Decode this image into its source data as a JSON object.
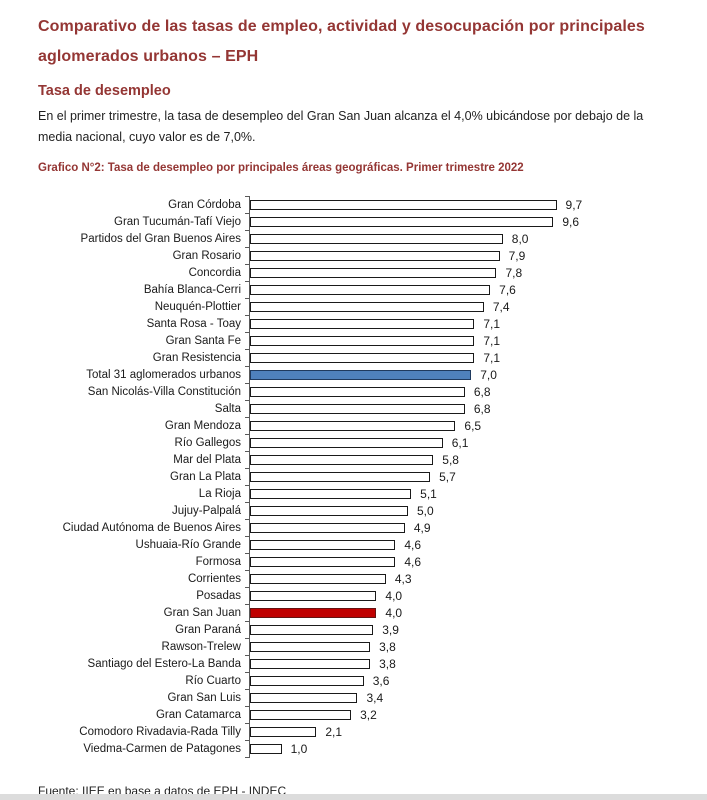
{
  "page": {
    "title": "Comparativo de las tasas de empleo, actividad y desocupación por principales aglomerados urbanos – EPH",
    "section_heading": "Tasa de desempleo",
    "intro_paragraph": "En el primer trimestre, la tasa de desempleo del Gran San Juan alcanza el 4,0% ubicándose por debajo de la media nacional, cuyo valor es de 7,0%.",
    "chart_caption": "Grafico N°2: Tasa de desempleo por principales áreas geográficas. Primer trimestre 2022",
    "source": "Fuente: IIEE en base a datos de EPH - INDEC"
  },
  "colors": {
    "heading": "#943634",
    "text": "#1f1f1f",
    "bar_default_fill": "#ffffff",
    "bar_default_border": "#1a1a1a",
    "bar_total_fill": "#4f81bd",
    "bar_total_border": "#1f3a5f",
    "bar_san_juan_fill": "#c00000",
    "bar_san_juan_border": "#641311",
    "axis": "#595959"
  },
  "chart_data": {
    "type": "bar",
    "orientation": "horizontal",
    "title": "Grafico N°2: Tasa de desempleo por principales áreas geográficas. Primer trimestre 2022",
    "xlabel": "",
    "ylabel": "",
    "xlim": [
      0,
      10
    ],
    "grid": false,
    "legend": false,
    "value_labels": "end-of-bar, decimal comma, one decimal",
    "categories": [
      "Gran Córdoba",
      "Gran Tucumán-Tafí Viejo",
      "Partidos del Gran Buenos Aires",
      "Gran Rosario",
      "Concordia",
      "Bahía Blanca-Cerri",
      "Neuquén-Plottier",
      "Santa Rosa - Toay",
      "Gran Santa Fe",
      "Gran Resistencia",
      "Total 31 aglomerados urbanos",
      "San Nicolás-Villa Constitución",
      "Salta",
      "Gran Mendoza",
      "Río Gallegos",
      "Mar del Plata",
      "Gran La Plata",
      "La Rioja",
      "Jujuy-Palpalá",
      "Ciudad Autónoma de Buenos Aires",
      "Ushuaia-Río Grande",
      "Formosa",
      "Corrientes",
      "Posadas",
      "Gran San Juan",
      "Gran Paraná",
      "Rawson-Trelew",
      "Santiago del Estero-La Banda",
      "Río Cuarto",
      "Gran San Luis",
      "Gran Catamarca",
      "Comodoro Rivadavia-Rada Tilly",
      "Viedma-Carmen de Patagones"
    ],
    "values": [
      9.7,
      9.6,
      8.0,
      7.9,
      7.8,
      7.6,
      7.4,
      7.1,
      7.1,
      7.1,
      7.0,
      6.8,
      6.8,
      6.5,
      6.1,
      5.8,
      5.7,
      5.1,
      5.0,
      4.9,
      4.6,
      4.6,
      4.3,
      4.0,
      4.0,
      3.9,
      3.8,
      3.8,
      3.6,
      3.4,
      3.2,
      2.1,
      1.0
    ],
    "highlights": [
      {
        "index": 10,
        "role": "bar-total-31-aglomerados",
        "fill": "#4f81bd",
        "border": "#1f3a5f"
      },
      {
        "index": 24,
        "role": "bar-gran-san-juan",
        "fill": "#c00000",
        "border": "#641311"
      }
    ]
  }
}
